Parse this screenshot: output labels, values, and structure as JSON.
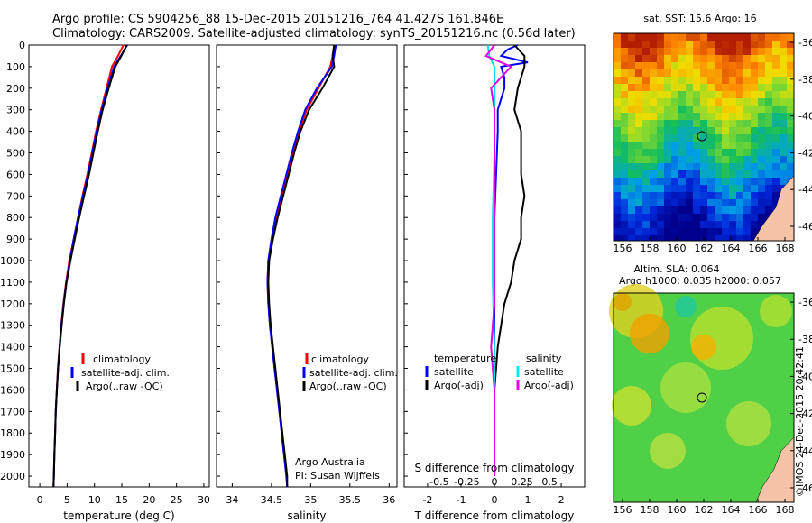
{
  "title_line1": "Argo profile: CS 5904256_88 15-Dec-2015 20151216_764 41.427S 161.846E",
  "title_line2": "Climatology: CARS2009. Satellite-adjusted climatology: synTS_20151216.nc (0.56d later)",
  "depth_ticks": [
    "0",
    "100",
    "200",
    "300",
    "400",
    "500",
    "600",
    "700",
    "800",
    "900",
    "1000",
    "1100",
    "1200",
    "1300",
    "1400",
    "1500",
    "1600",
    "1700",
    "1800",
    "1900",
    "2000"
  ],
  "panel_temp": {
    "xlabel": "temperature (deg C)",
    "xticks": [
      "0",
      "5",
      "10",
      "15",
      "20",
      "25",
      "30"
    ],
    "legend": [
      "climatology",
      "satellite-adj. clim.",
      "Argo(..raw -QC)"
    ]
  },
  "panel_sal": {
    "xlabel": "salinity",
    "xticks": [
      "34",
      "34.5",
      "35",
      "35.5",
      "36"
    ],
    "legend": [
      "climatology",
      "satellite-adj. clim.",
      "Argo(..raw -QC)"
    ],
    "credit1": "Argo Australia",
    "credit2": "PI: Susan Wijffels"
  },
  "panel_diff": {
    "xlabel": "T difference from climatology",
    "xticks_top": [
      "-0.5",
      "-0.25",
      "0",
      "0.25",
      "0.5"
    ],
    "xticks_bottom": [
      "-2",
      "-1",
      "0",
      "1",
      "2"
    ],
    "top_label": "S difference from climatology",
    "legend_temp_title": "temperature",
    "legend_sal_title": "salinity",
    "legend_temp": [
      "satellite",
      "Argo(-adj)"
    ],
    "legend_sal": [
      "satellite",
      "Argo(-adj)"
    ]
  },
  "map_sst": {
    "title": "sat. SST: 15.6  Argo: 16",
    "lat_ticks": [
      "-36",
      "-38",
      "-40",
      "-42",
      "-44",
      "-46"
    ],
    "lon_ticks": [
      "156",
      "158",
      "160",
      "162",
      "164",
      "166",
      "168"
    ]
  },
  "map_sla": {
    "title1": "Altim. SLA: 0.064",
    "title2": "Argo h1000: 0.035  h2000: 0.057",
    "lat_ticks": [
      "-36",
      "-38",
      "-40",
      "-42",
      "-44",
      "-46"
    ],
    "lon_ticks": [
      "156",
      "158",
      "160",
      "162",
      "164",
      "166",
      "168"
    ],
    "stamp": "©IMOS 24-Dec-2015 20:42:41"
  },
  "colors": {
    "climatology": "#ff0000",
    "satellite": "#0000ff",
    "argo": "#000000",
    "sal_satellite": "#00e0e0",
    "sal_argo": "#e000e0",
    "land": "#f5c4a8"
  },
  "chart_data": [
    {
      "type": "line",
      "xlabel": "temperature (deg C)",
      "ylabel": "",
      "xlim": [
        -2,
        31
      ],
      "ylim": [
        2050,
        0
      ],
      "series": [
        {
          "name": "climatology",
          "depth": [
            0,
            50,
            100,
            200,
            300,
            400,
            500,
            600,
            700,
            800,
            900,
            1000,
            1100,
            1200,
            1300,
            1400,
            1500,
            1600,
            1700,
            1800,
            1900,
            2000,
            2050
          ],
          "values": [
            15.3,
            14.3,
            13.2,
            12.2,
            11.2,
            10.3,
            9.5,
            8.7,
            7.8,
            7.0,
            6.2,
            5.4,
            4.8,
            4.3,
            3.9,
            3.6,
            3.3,
            3.1,
            2.9,
            2.8,
            2.65,
            2.55,
            2.5
          ]
        },
        {
          "name": "satellite-adj. clim.",
          "depth": [
            0,
            50,
            100,
            200,
            300,
            400,
            500,
            600,
            700,
            800,
            900,
            1000,
            1100,
            1200,
            1300,
            1400,
            1500,
            1600,
            1700,
            1800,
            1900,
            2000,
            2050
          ],
          "values": [
            16.0,
            14.8,
            13.6,
            12.4,
            11.3,
            10.4,
            9.6,
            8.8,
            7.9,
            7.0,
            6.2,
            5.5,
            4.85,
            4.35,
            3.95,
            3.62,
            3.35,
            3.12,
            2.92,
            2.8,
            2.67,
            2.57,
            2.5
          ]
        },
        {
          "name": "Argo(..raw -QC)",
          "depth": [
            0,
            50,
            100,
            200,
            300,
            400,
            500,
            600,
            700,
            800,
            900,
            1000,
            1100,
            1200,
            1300,
            1400,
            1500,
            1600,
            1700,
            1800,
            1900,
            2000,
            2050
          ],
          "values": [
            15.9,
            14.9,
            13.8,
            12.6,
            11.5,
            10.6,
            9.8,
            9.0,
            8.1,
            7.2,
            6.4,
            5.6,
            4.9,
            4.4,
            4.0,
            3.65,
            3.35,
            3.12,
            2.92,
            2.8,
            2.67,
            2.57,
            2.5
          ]
        }
      ]
    },
    {
      "type": "line",
      "xlabel": "salinity",
      "ylabel": "",
      "xlim": [
        33.8,
        36.1
      ],
      "ylim": [
        2050,
        0
      ],
      "series": [
        {
          "name": "climatology",
          "depth": [
            0,
            50,
            100,
            200,
            300,
            400,
            500,
            600,
            700,
            800,
            900,
            1000,
            1100,
            1200,
            1300,
            1400,
            1500,
            1600,
            1700,
            1800,
            1900,
            2000,
            2050
          ],
          "values": [
            35.3,
            35.28,
            35.25,
            35.1,
            34.95,
            34.85,
            34.77,
            34.7,
            34.63,
            34.56,
            34.5,
            34.46,
            34.45,
            34.46,
            34.48,
            34.51,
            34.54,
            34.57,
            34.6,
            34.63,
            34.66,
            34.69,
            34.7
          ]
        },
        {
          "name": "satellite-adj. clim.",
          "depth": [
            0,
            50,
            100,
            200,
            300,
            400,
            500,
            600,
            700,
            800,
            900,
            1000,
            1100,
            1200,
            1300,
            1400,
            1500,
            1600,
            1700,
            1800,
            1900,
            2000,
            2050
          ],
          "values": [
            35.32,
            35.3,
            35.27,
            35.08,
            34.93,
            34.84,
            34.76,
            34.69,
            34.62,
            34.55,
            34.5,
            34.46,
            34.45,
            34.46,
            34.48,
            34.51,
            34.54,
            34.57,
            34.6,
            34.63,
            34.66,
            34.69,
            34.7
          ]
        },
        {
          "name": "Argo(..raw -QC)",
          "depth": [
            0,
            50,
            100,
            200,
            300,
            400,
            500,
            600,
            700,
            800,
            900,
            1000,
            1100,
            1200,
            1300,
            1400,
            1500,
            1600,
            1700,
            1800,
            1900,
            2000,
            2050
          ],
          "values": [
            35.3,
            35.28,
            35.3,
            35.15,
            34.98,
            34.87,
            34.79,
            34.72,
            34.65,
            34.58,
            34.52,
            34.47,
            34.46,
            34.47,
            34.49,
            34.52,
            34.55,
            34.58,
            34.61,
            34.64,
            34.67,
            34.7,
            34.7
          ]
        }
      ]
    },
    {
      "type": "line",
      "xlabel": "T difference from climatology",
      "ylabel": "",
      "xlim": [
        -2.7,
        2.7
      ],
      "ylim": [
        2050,
        0
      ],
      "series": [
        {
          "name": "satellite",
          "depth": [
            0,
            20,
            50,
            80,
            100,
            150,
            200,
            300,
            400,
            600,
            800,
            1000,
            1200,
            1400,
            1600,
            1800,
            2000
          ],
          "values": [
            0.7,
            0.4,
            0.2,
            1.0,
            0.2,
            0.3,
            0.3,
            0.1,
            0.1,
            0.05,
            0.0,
            0.0,
            0.0,
            0.0,
            0.0,
            0.0,
            0.0
          ]
        },
        {
          "name": "Argo(-adj)",
          "depth": [
            0,
            50,
            100,
            200,
            300,
            400,
            500,
            600,
            700,
            800,
            900,
            1000,
            1100,
            1200,
            1300,
            1400,
            1500,
            1600,
            1800,
            2000
          ],
          "values": [
            0.6,
            0.9,
            0.9,
            0.7,
            0.6,
            0.8,
            0.8,
            0.8,
            0.9,
            0.8,
            0.8,
            0.6,
            0.5,
            0.3,
            0.2,
            0.1,
            0.05,
            0.0,
            0.0,
            0.0
          ]
        },
        {
          "name": "salinity satellite",
          "depth": [
            0,
            50,
            100,
            200,
            300,
            500,
            800,
            1100,
            1400,
            1700,
            2000
          ],
          "values": [
            -0.2,
            -0.15,
            0.0,
            0.0,
            0.0,
            0.0,
            -0.05,
            -0.05,
            0.0,
            0.0,
            0.0
          ]
        },
        {
          "name": "salinity Argo(-adj)",
          "depth": [
            0,
            50,
            100,
            200,
            300,
            400,
            600,
            800,
            1000,
            1200,
            1400,
            1600,
            1800,
            2000
          ],
          "values": [
            0.0,
            -0.25,
            0.5,
            -0.1,
            0.0,
            0.0,
            0.0,
            0.0,
            0.0,
            0.0,
            -0.1,
            0.0,
            0.0,
            0.0
          ]
        }
      ]
    }
  ]
}
